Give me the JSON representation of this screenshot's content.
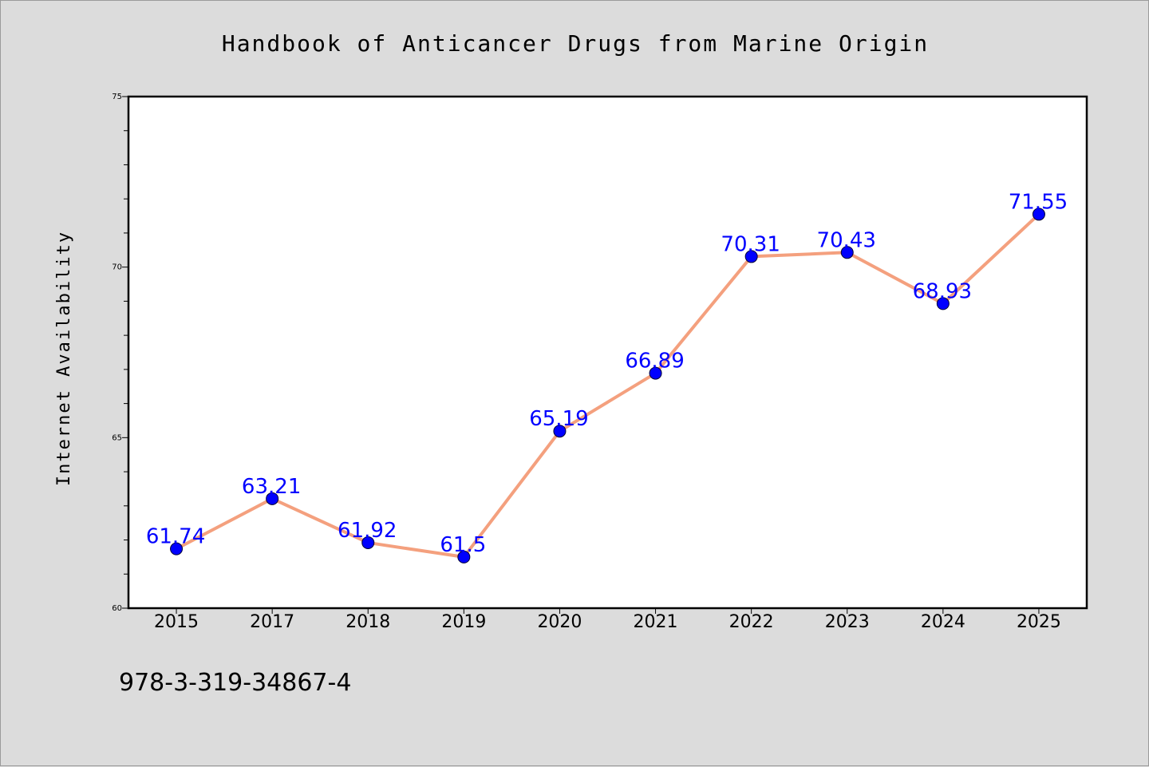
{
  "chart_data": {
    "type": "line",
    "title": "Handbook of Anticancer Drugs from Marine Origin",
    "xlabel": "",
    "ylabel": "Internet Availability",
    "categories": [
      "2015",
      "2017",
      "2018",
      "2019",
      "2020",
      "2021",
      "2022",
      "2023",
      "2024",
      "2025"
    ],
    "series": [
      {
        "values": [
          61.74,
          63.21,
          61.92,
          61.5,
          65.19,
          66.89,
          70.31,
          70.43,
          68.93,
          71.55
        ],
        "data_labels": [
          "61.74",
          "63.21",
          "61.92",
          "61.5",
          "65.19",
          "66.89",
          "70.31",
          "70.43",
          "68.93",
          "71.55"
        ]
      }
    ],
    "ylim": [
      60,
      75
    ],
    "yticks": [
      60,
      65,
      70,
      75
    ],
    "grid": false,
    "legend": "none"
  },
  "annotation": {
    "isbn": "978-3-319-34867-4"
  },
  "colors": {
    "background": "#dcdcdc",
    "plot_area": "#ffffff",
    "line": "#f4a07e",
    "marker": "#0000ff",
    "data_label": "#0000ff",
    "text": "#000000"
  }
}
